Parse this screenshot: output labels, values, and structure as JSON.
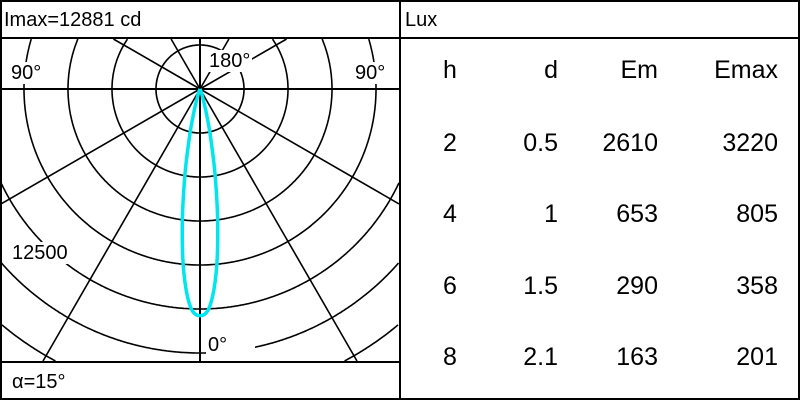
{
  "left_panel": {
    "imax_label": "Imax=12881 cd",
    "angle_label_left": "90°",
    "angle_label_right": "90°",
    "angle_label_top": "180°",
    "angle_label_bottom": "0°",
    "scale_label": "12500",
    "beam_angle_label": "α=15°"
  },
  "right_panel": {
    "unit_label": "Lux",
    "columns": [
      "h",
      "d",
      "Em",
      "Emax"
    ],
    "rows": [
      [
        "2",
        "0.5",
        "2610",
        "3220"
      ],
      [
        "4",
        "1",
        "653",
        "805"
      ],
      [
        "6",
        "1.5",
        "290",
        "358"
      ],
      [
        "8",
        "2.1",
        "163",
        "201"
      ]
    ]
  },
  "chart_data": {
    "type": "line",
    "coordinate_system": "polar",
    "unit": "cd",
    "ring_step": 2500,
    "labeled_ring": 12500,
    "spoke_step_deg": 30,
    "grid": true,
    "line_color": "#00e5ee",
    "series": [
      {
        "angle_deg": [
          0,
          2.5,
          5,
          7.5,
          10,
          12.5,
          15,
          20,
          25,
          30
        ],
        "intensity": [
          12881,
          12400,
          10500,
          7700,
          4900,
          2700,
          1300,
          300,
          60,
          0
        ]
      }
    ]
  }
}
